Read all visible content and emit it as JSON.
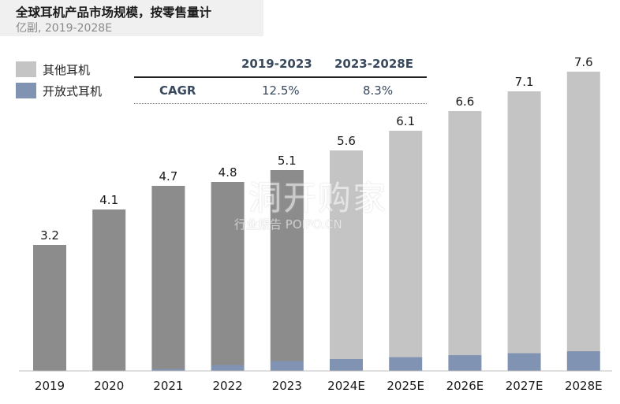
{
  "header": {
    "title": "全球耳机产品市场规模，按零售量计",
    "subtitle": "亿副, 2019-2028E"
  },
  "legend": [
    {
      "label": "其他耳机",
      "color": "#c4c4c4"
    },
    {
      "label": "开放式耳机",
      "color": "#8193b2"
    }
  ],
  "cagr": {
    "row_label": "CAGR",
    "columns": [
      {
        "period": "2019-2023",
        "value": "12.5%"
      },
      {
        "period": "2023-2028E",
        "value": "8.3%"
      }
    ]
  },
  "watermark": {
    "main": "洞开购家",
    "sub": "行业报告 POIPO.CN"
  },
  "chart_data": {
    "type": "bar",
    "stacked": true,
    "categories": [
      "2019",
      "2020",
      "2021",
      "2022",
      "2023",
      "2024E",
      "2025E",
      "2026E",
      "2027E",
      "2028E"
    ],
    "totals": [
      3.2,
      4.1,
      4.7,
      4.8,
      5.1,
      5.6,
      6.1,
      6.6,
      7.1,
      7.6
    ],
    "series": [
      {
        "name": "开放式耳机",
        "values": [
          0.0,
          0.0,
          0.05,
          0.15,
          0.25,
          0.3,
          0.35,
          0.4,
          0.45,
          0.5
        ],
        "color": "#8193b2"
      },
      {
        "name": "其他耳机",
        "values": [
          3.2,
          4.1,
          4.65,
          4.65,
          4.85,
          5.3,
          5.75,
          6.2,
          6.65,
          7.1
        ],
        "color_actual": "#8c8c8c",
        "color_forecast": "#c4c4c4"
      }
    ],
    "forecast_from_index": 5,
    "ylim": [
      0,
      8
    ],
    "grid": false
  }
}
